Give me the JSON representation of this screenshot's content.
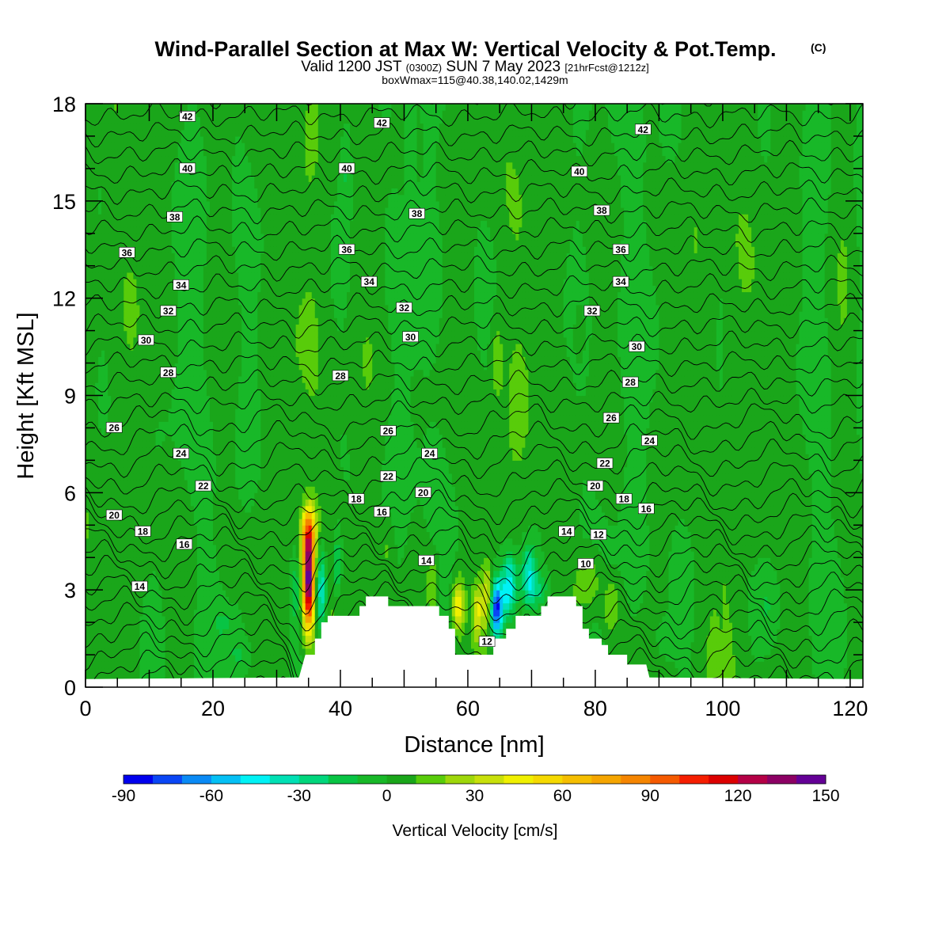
{
  "chart_data": {
    "type": "heatmap",
    "title": "Wind-Parallel Section at Max W: Vertical Velocity & Pot.Temp.",
    "title_suffix": "(C)",
    "subtitle_parts": [
      "Valid 1200 JST",
      "(0300Z)",
      "SUN 7 May 2023",
      "[21hrFcst@1212z]"
    ],
    "note": "boxWmax=115@40.38,140.02,1429m",
    "xlabel": "Distance [nm]",
    "ylabel": "Height [Kft MSL]",
    "xlim": [
      0,
      122
    ],
    "ylim": [
      0,
      18
    ],
    "x_ticks": [
      0,
      20,
      40,
      60,
      80,
      100,
      120
    ],
    "y_ticks": [
      0,
      3,
      6,
      9,
      12,
      15,
      18
    ],
    "colorbar": {
      "title": "Vertical Velocity [cm/s]",
      "min": -90,
      "max": 150,
      "step": 10,
      "tick_values": [
        -90,
        -60,
        -30,
        0,
        30,
        60,
        90,
        120,
        150
      ],
      "colors": [
        "#0000ee",
        "#0a46f5",
        "#0a8af5",
        "#05c0f5",
        "#00f2f5",
        "#00e0b4",
        "#00d67c",
        "#08c444",
        "#18b828",
        "#1aa61a",
        "#58cc0a",
        "#9ed70a",
        "#c8e00a",
        "#f0f000",
        "#f5d900",
        "#f5be00",
        "#f5a500",
        "#f58500",
        "#f55a00",
        "#f51e00",
        "#dc0000",
        "#b40046",
        "#8c0064",
        "#640096"
      ]
    },
    "terrain_kft": [
      [
        33.5,
        0.3
      ],
      [
        34.5,
        1.0
      ],
      [
        36.0,
        1.0
      ],
      [
        36.0,
        1.5
      ],
      [
        37.0,
        1.5
      ],
      [
        37.0,
        2.0
      ],
      [
        38.0,
        2.0
      ],
      [
        38.0,
        2.2
      ],
      [
        43.0,
        2.2
      ],
      [
        43.0,
        2.5
      ],
      [
        44.0,
        2.5
      ],
      [
        44.0,
        2.8
      ],
      [
        47.5,
        2.8
      ],
      [
        47.5,
        2.5
      ],
      [
        55.5,
        2.5
      ],
      [
        55.5,
        2.2
      ],
      [
        57.0,
        2.2
      ],
      [
        57.0,
        1.8
      ],
      [
        58.0,
        1.8
      ],
      [
        58.0,
        1.0
      ],
      [
        64.0,
        1.0
      ],
      [
        64.0,
        1.5
      ],
      [
        66.0,
        1.5
      ],
      [
        66.0,
        1.8
      ],
      [
        67.5,
        1.8
      ],
      [
        67.5,
        2.2
      ],
      [
        71.5,
        2.2
      ],
      [
        71.5,
        2.5
      ],
      [
        72.5,
        2.5
      ],
      [
        72.5,
        2.8
      ],
      [
        77.0,
        2.8
      ],
      [
        77.0,
        2.5
      ],
      [
        78.0,
        2.5
      ],
      [
        78.0,
        1.8
      ],
      [
        79.0,
        1.8
      ],
      [
        79.0,
        1.5
      ],
      [
        81.0,
        1.5
      ],
      [
        81.0,
        1.3
      ],
      [
        82.0,
        1.3
      ],
      [
        82.0,
        1.0
      ],
      [
        85.0,
        1.0
      ],
      [
        85.0,
        0.7
      ],
      [
        88.0,
        0.7
      ],
      [
        88.5,
        0.3
      ]
    ],
    "w_features": [
      {
        "x": 35.0,
        "z": 3.3,
        "sx": 0.9,
        "sz": 1.5,
        "w": 145
      },
      {
        "x": 35.0,
        "z": 4.8,
        "sx": 1.2,
        "sz": 0.8,
        "w": 55
      },
      {
        "x": 37.0,
        "z": 3.0,
        "sx": 0.9,
        "sz": 1.3,
        "w": -50
      },
      {
        "x": 39.5,
        "z": 3.8,
        "sx": 0.7,
        "sz": 1.0,
        "w": -30
      },
      {
        "x": 33.0,
        "z": 3.0,
        "sx": 0.8,
        "sz": 1.2,
        "w": -20
      },
      {
        "x": 58.5,
        "z": 2.5,
        "sx": 0.9,
        "sz": 0.8,
        "w": 50
      },
      {
        "x": 61.5,
        "z": 2.3,
        "sx": 0.7,
        "sz": 0.8,
        "w": 35
      },
      {
        "x": 64.5,
        "z": 2.4,
        "sx": 1.0,
        "sz": 0.9,
        "w": -90
      },
      {
        "x": 66.5,
        "z": 3.1,
        "sx": 1.2,
        "sz": 1.0,
        "w": -55
      },
      {
        "x": 69.5,
        "z": 3.5,
        "sx": 1.2,
        "sz": 0.9,
        "w": -40
      },
      {
        "x": 63.0,
        "z": 2.8,
        "sx": 0.8,
        "sz": 1.0,
        "w": 35
      },
      {
        "x": 79.0,
        "z": 3.3,
        "sx": 1.8,
        "sz": 0.9,
        "w": 22
      },
      {
        "x": 82.5,
        "z": 2.5,
        "sx": 1.5,
        "sz": 0.8,
        "w": 20
      },
      {
        "x": 71.0,
        "z": 3.0,
        "sx": 2.0,
        "sz": 0.6,
        "w": -20
      },
      {
        "x": 54.5,
        "z": 3.2,
        "sx": 0.8,
        "sz": 0.9,
        "w": 20
      },
      {
        "x": 47.5,
        "z": 4.2,
        "sx": 1.0,
        "sz": 1.0,
        "w": 12
      },
      {
        "x": 64.5,
        "z": 10.2,
        "sx": 0.9,
        "sz": 1.2,
        "w": 15
      },
      {
        "x": 77.5,
        "z": 11.0,
        "sx": 0.8,
        "sz": 0.8,
        "w": 10
      },
      {
        "x": 41.0,
        "z": 16.0,
        "sx": 0.9,
        "sz": 1.5,
        "w": -15
      },
      {
        "x": 51.0,
        "z": 17.0,
        "sx": 0.8,
        "sz": 1.5,
        "w": -12
      },
      {
        "x": 22.0,
        "z": 2.0,
        "sx": 2.0,
        "sz": 0.5,
        "w": -10
      },
      {
        "x": 24.0,
        "z": 1.0,
        "sx": 1.5,
        "sz": 0.4,
        "w": -12
      },
      {
        "x": 91.0,
        "z": 1.5,
        "sx": 1.5,
        "sz": 0.6,
        "w": -12
      },
      {
        "x": 107.0,
        "z": 2.5,
        "sx": 2.0,
        "sz": 1.0,
        "w": -10
      }
    ],
    "contour_labels": [
      {
        "x": 16,
        "z": 17.6,
        "v": "42"
      },
      {
        "x": 46.5,
        "z": 17.4,
        "v": "42"
      },
      {
        "x": 87.5,
        "z": 17.2,
        "v": "42"
      },
      {
        "x": 16,
        "z": 16.0,
        "v": "40"
      },
      {
        "x": 41,
        "z": 16.0,
        "v": "40"
      },
      {
        "x": 77.5,
        "z": 15.9,
        "v": "40"
      },
      {
        "x": 14,
        "z": 14.5,
        "v": "38"
      },
      {
        "x": 52,
        "z": 14.6,
        "v": "38"
      },
      {
        "x": 81,
        "z": 14.7,
        "v": "38"
      },
      {
        "x": 6.5,
        "z": 13.4,
        "v": "36"
      },
      {
        "x": 41,
        "z": 13.5,
        "v": "36"
      },
      {
        "x": 84,
        "z": 13.5,
        "v": "36"
      },
      {
        "x": 15,
        "z": 12.4,
        "v": "34"
      },
      {
        "x": 44.5,
        "z": 12.5,
        "v": "34"
      },
      {
        "x": 84,
        "z": 12.5,
        "v": "34"
      },
      {
        "x": 13,
        "z": 11.6,
        "v": "32"
      },
      {
        "x": 50,
        "z": 11.7,
        "v": "32"
      },
      {
        "x": 79.5,
        "z": 11.6,
        "v": "32"
      },
      {
        "x": 9.5,
        "z": 10.7,
        "v": "30"
      },
      {
        "x": 51,
        "z": 10.8,
        "v": "30"
      },
      {
        "x": 86.5,
        "z": 10.5,
        "v": "30"
      },
      {
        "x": 13,
        "z": 9.7,
        "v": "28"
      },
      {
        "x": 40,
        "z": 9.6,
        "v": "28"
      },
      {
        "x": 85.5,
        "z": 9.4,
        "v": "28"
      },
      {
        "x": 4.5,
        "z": 8.0,
        "v": "26"
      },
      {
        "x": 47.5,
        "z": 7.9,
        "v": "26"
      },
      {
        "x": 82.5,
        "z": 8.3,
        "v": "26"
      },
      {
        "x": 15,
        "z": 7.2,
        "v": "24"
      },
      {
        "x": 54,
        "z": 7.2,
        "v": "24"
      },
      {
        "x": 88.5,
        "z": 7.6,
        "v": "24"
      },
      {
        "x": 18.5,
        "z": 6.2,
        "v": "22"
      },
      {
        "x": 47.5,
        "z": 6.5,
        "v": "22"
      },
      {
        "x": 81.5,
        "z": 6.9,
        "v": "22"
      },
      {
        "x": 4.5,
        "z": 5.3,
        "v": "20"
      },
      {
        "x": 53,
        "z": 6.0,
        "v": "20"
      },
      {
        "x": 80,
        "z": 6.2,
        "v": "20"
      },
      {
        "x": 9,
        "z": 4.8,
        "v": "18"
      },
      {
        "x": 42.5,
        "z": 5.8,
        "v": "18"
      },
      {
        "x": 84.5,
        "z": 5.8,
        "v": "18"
      },
      {
        "x": 15.5,
        "z": 4.4,
        "v": "16"
      },
      {
        "x": 46.5,
        "z": 5.4,
        "v": "16"
      },
      {
        "x": 88,
        "z": 5.5,
        "v": "16"
      },
      {
        "x": 8.5,
        "z": 3.1,
        "v": "14"
      },
      {
        "x": 53.5,
        "z": 3.9,
        "v": "14"
      },
      {
        "x": 75.5,
        "z": 4.8,
        "v": "14"
      },
      {
        "x": 80.5,
        "z": 4.7,
        "v": "12"
      },
      {
        "x": 78.5,
        "z": 3.8,
        "v": "10"
      },
      {
        "x": 63,
        "z": 1.4,
        "v": "12"
      }
    ]
  }
}
